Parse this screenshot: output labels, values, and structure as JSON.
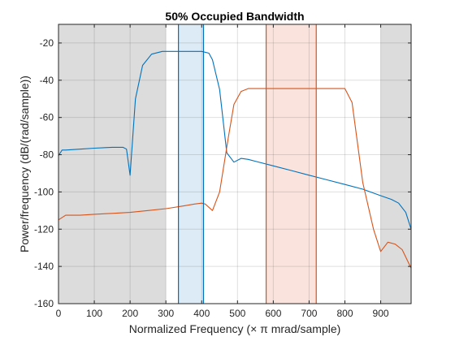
{
  "chart_data": {
    "type": "line",
    "title": "50% Occupied Bandwidth",
    "xlabel": "Normalized  Frequency    (× π  mrad/sample)",
    "ylabel": "Power/frequency (dB/(rad/sample))",
    "xlim": [
      0,
      985
    ],
    "ylim": [
      -160,
      -10
    ],
    "xticks": [
      0,
      100,
      200,
      300,
      400,
      500,
      600,
      700,
      800,
      900
    ],
    "yticks": [
      -20,
      -40,
      -60,
      -80,
      -100,
      -120,
      -140,
      -160
    ],
    "xtick_labels": [
      "0",
      "100",
      "200",
      "300",
      "400",
      "500",
      "600",
      "700",
      "800",
      "900"
    ],
    "ytick_labels": [
      "-20",
      "-40",
      "-60",
      "-80",
      "-100",
      "-120",
      "-140",
      "-160"
    ],
    "grid": true,
    "excluded_regions": [
      {
        "x0": 0,
        "x1": 300,
        "color": "#dcdcdc"
      },
      {
        "x0": 900,
        "x1": 985,
        "color": "#dcdcdc"
      }
    ],
    "occupied_bands": [
      {
        "x0": 335,
        "x1": 405,
        "fill": "#dcebf6",
        "edge": "#0072bd"
      },
      {
        "x0": 580,
        "x1": 720,
        "fill": "#f9e3dc",
        "edge": "#d95319"
      }
    ],
    "series": [
      {
        "color": "#0072bd",
        "x": [
          0,
          10,
          20,
          60,
          100,
          150,
          180,
          190,
          200,
          215,
          235,
          260,
          290,
          320,
          360,
          400,
          420,
          430,
          450,
          470,
          490,
          510,
          530,
          550,
          600,
          650,
          700,
          750,
          800,
          850,
          900,
          930,
          950,
          970,
          985
        ],
        "y": [
          -80.5,
          -77.5,
          -77.5,
          -77,
          -76.5,
          -76,
          -76,
          -77,
          -91,
          -50,
          -32,
          -26,
          -24.5,
          -24.5,
          -24.5,
          -24.5,
          -25.5,
          -29,
          -45,
          -79,
          -84,
          -82,
          -82.5,
          -83.5,
          -86,
          -88.5,
          -91,
          -93.5,
          -96,
          -98.5,
          -102,
          -104,
          -106,
          -111,
          -120
        ]
      },
      {
        "color": "#d95319",
        "x": [
          0,
          20,
          60,
          100,
          150,
          200,
          250,
          300,
          350,
          380,
          400,
          410,
          430,
          450,
          475,
          490,
          510,
          530,
          550,
          600,
          650,
          700,
          750,
          780,
          800,
          820,
          850,
          880,
          900,
          920,
          940,
          960,
          985
        ],
        "y": [
          -115,
          -112.5,
          -112.5,
          -112,
          -111.5,
          -111,
          -110,
          -109,
          -107.5,
          -106.5,
          -106,
          -106.5,
          -110,
          -100,
          -70,
          -53,
          -46,
          -44.5,
          -44.5,
          -44.5,
          -44.5,
          -44.5,
          -44.5,
          -44.5,
          -44.5,
          -52,
          -95,
          -120,
          -132,
          -127,
          -128,
          -131,
          -141
        ]
      }
    ]
  }
}
